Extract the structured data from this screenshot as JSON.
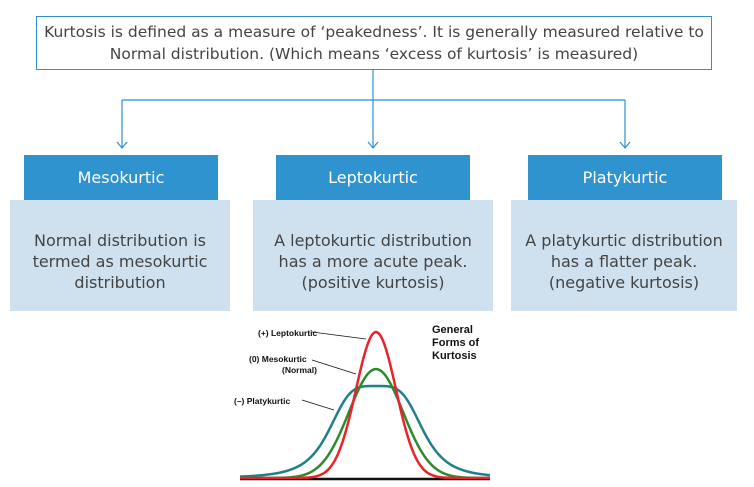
{
  "definition": {
    "line1": "Kurtosis is defined as a measure of ‘peakedness’. It is generally measured relative to",
    "line2": "Normal distribution. (Which means ‘excess of kurtosis’ is measured)"
  },
  "types": [
    {
      "title": "Mesokurtic",
      "desc": [
        "Normal distribution is",
        "termed as mesokurtic",
        "distribution"
      ]
    },
    {
      "title": "Leptokurtic",
      "desc": [
        "A leptokurtic distribution",
        "has a more acute peak.",
        "(positive kurtosis)"
      ]
    },
    {
      "title": "Platykurtic",
      "desc": [
        "A platykurtic distribution",
        "has a flatter peak.",
        "(negative kurtosis)"
      ]
    }
  ],
  "figure": {
    "title": [
      "General",
      "Forms of",
      "Kurtosis"
    ],
    "labels": {
      "lepto": "(+) Leptokurtic",
      "meso1": "(0)  Mesokurtic",
      "meso2": "(Normal)",
      "platy": "(–)  Platykurtic"
    },
    "colors": {
      "lepto": "#e8232a",
      "meso": "#2d8b2d",
      "platy": "#1f7f8a",
      "accent": "#2f93d0"
    }
  }
}
